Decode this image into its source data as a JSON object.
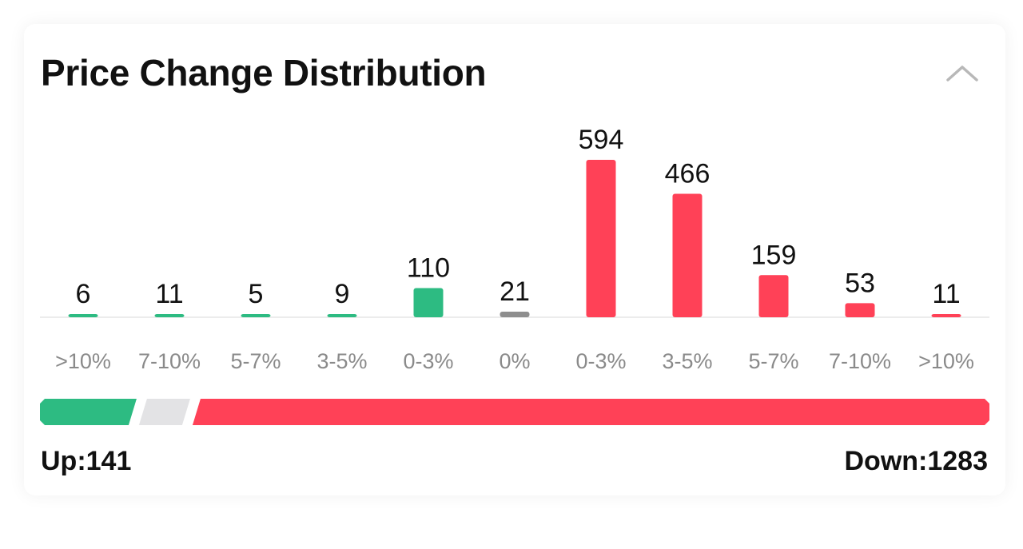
{
  "title": "Price Change Distribution",
  "icons": {
    "collapse": "chevron-up-icon"
  },
  "colors": {
    "up": "#2dbb82",
    "flat": "#8e8e8e",
    "down": "#ff4157",
    "neutral_bar": "#e3e3e5"
  },
  "chart_data": {
    "type": "bar",
    "title": "Price Change Distribution",
    "categories": [
      ">10%",
      "7-10%",
      "5-7%",
      "3-5%",
      "0-3%",
      "0%",
      "0-3%",
      "3-5%",
      "5-7%",
      "7-10%",
      ">10%"
    ],
    "values": [
      6,
      11,
      5,
      9,
      110,
      21,
      594,
      466,
      159,
      53,
      11
    ],
    "direction": [
      "up",
      "up",
      "up",
      "up",
      "up",
      "flat",
      "down",
      "down",
      "down",
      "down",
      "down"
    ],
    "value_labels": [
      "6",
      "11",
      "5",
      "9",
      "110",
      "21",
      "594",
      "466",
      "159",
      "53",
      "11"
    ],
    "ylim": [
      0,
      594
    ],
    "grid": false,
    "legend": "none"
  },
  "summary": {
    "up_label": "Up:141",
    "down_label": "Down:1283",
    "up_count": 141,
    "flat_count": 21,
    "down_count": 1283
  }
}
